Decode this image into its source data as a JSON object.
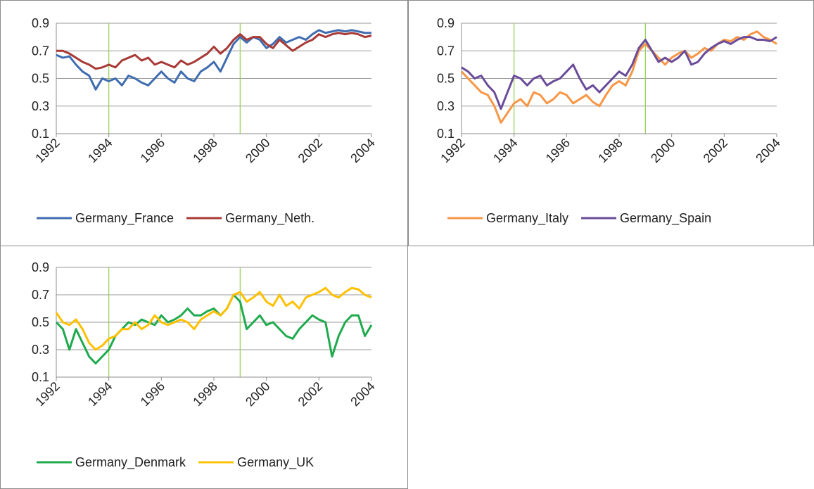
{
  "chart_data": [
    {
      "type": "line",
      "x": [
        1992,
        1992.25,
        1992.5,
        1992.75,
        1993,
        1993.25,
        1993.5,
        1993.75,
        1994,
        1994.25,
        1994.5,
        1994.75,
        1995,
        1995.25,
        1995.5,
        1995.75,
        1996,
        1996.25,
        1996.5,
        1996.75,
        1997,
        1997.25,
        1997.5,
        1997.75,
        1998,
        1998.25,
        1998.5,
        1998.75,
        1999,
        1999.25,
        1999.5,
        1999.75,
        2000,
        2000.25,
        2000.5,
        2000.75,
        2001,
        2001.25,
        2001.5,
        2001.75,
        2002,
        2002.25,
        2002.5,
        2002.75,
        2003,
        2003.25,
        2003.5,
        2003.75,
        2004
      ],
      "series": [
        {
          "name": "Germany_France",
          "color": "#3f6db0",
          "values": [
            0.67,
            0.65,
            0.66,
            0.6,
            0.55,
            0.52,
            0.42,
            0.5,
            0.48,
            0.5,
            0.45,
            0.52,
            0.5,
            0.47,
            0.45,
            0.5,
            0.55,
            0.5,
            0.47,
            0.55,
            0.5,
            0.48,
            0.55,
            0.58,
            0.62,
            0.55,
            0.65,
            0.75,
            0.8,
            0.76,
            0.8,
            0.78,
            0.72,
            0.75,
            0.8,
            0.76,
            0.78,
            0.8,
            0.78,
            0.82,
            0.85,
            0.83,
            0.84,
            0.85,
            0.84,
            0.85,
            0.84,
            0.83,
            0.83
          ]
        },
        {
          "name": "Germany_Neth.",
          "color": "#a83a36",
          "values": [
            0.7,
            0.7,
            0.68,
            0.65,
            0.62,
            0.6,
            0.57,
            0.58,
            0.6,
            0.58,
            0.63,
            0.65,
            0.67,
            0.63,
            0.65,
            0.6,
            0.62,
            0.6,
            0.58,
            0.63,
            0.6,
            0.62,
            0.65,
            0.68,
            0.73,
            0.68,
            0.72,
            0.78,
            0.82,
            0.78,
            0.8,
            0.8,
            0.75,
            0.72,
            0.78,
            0.74,
            0.7,
            0.73,
            0.76,
            0.78,
            0.82,
            0.8,
            0.82,
            0.83,
            0.82,
            0.83,
            0.82,
            0.8,
            0.81
          ]
        }
      ],
      "xlim": [
        1992,
        2004
      ],
      "xticks": [
        1992,
        1994,
        1996,
        1998,
        2000,
        2002,
        2004
      ],
      "ylim": [
        0.1,
        0.9
      ],
      "yticks": [
        0.1,
        0.3,
        0.5,
        0.7,
        0.9
      ],
      "grid": true,
      "vlines": [
        1994,
        1999
      ],
      "vline_color": "#92d050",
      "legend": "bottom"
    },
    {
      "type": "line",
      "x": [
        1992,
        1992.25,
        1992.5,
        1992.75,
        1993,
        1993.25,
        1993.5,
        1993.75,
        1994,
        1994.25,
        1994.5,
        1994.75,
        1995,
        1995.25,
        1995.5,
        1995.75,
        1996,
        1996.25,
        1996.5,
        1996.75,
        1997,
        1997.25,
        1997.5,
        1997.75,
        1998,
        1998.25,
        1998.5,
        1998.75,
        1999,
        1999.25,
        1999.5,
        1999.75,
        2000,
        2000.25,
        2000.5,
        2000.75,
        2001,
        2001.25,
        2001.5,
        2001.75,
        2002,
        2002.25,
        2002.5,
        2002.75,
        2003,
        2003.25,
        2003.5,
        2003.75,
        2004
      ],
      "series": [
        {
          "name": "Germany_Italy",
          "color": "#f79646",
          "values": [
            0.55,
            0.5,
            0.45,
            0.4,
            0.38,
            0.3,
            0.18,
            0.25,
            0.32,
            0.35,
            0.3,
            0.4,
            0.38,
            0.32,
            0.35,
            0.4,
            0.38,
            0.32,
            0.35,
            0.38,
            0.33,
            0.3,
            0.38,
            0.45,
            0.48,
            0.45,
            0.55,
            0.7,
            0.75,
            0.7,
            0.65,
            0.6,
            0.65,
            0.68,
            0.7,
            0.65,
            0.68,
            0.72,
            0.7,
            0.75,
            0.78,
            0.77,
            0.8,
            0.78,
            0.82,
            0.84,
            0.8,
            0.78,
            0.75
          ]
        },
        {
          "name": "Germany_Spain",
          "color": "#6a4c99",
          "values": [
            0.58,
            0.55,
            0.5,
            0.52,
            0.45,
            0.4,
            0.28,
            0.4,
            0.52,
            0.5,
            0.45,
            0.5,
            0.52,
            0.45,
            0.48,
            0.5,
            0.55,
            0.6,
            0.5,
            0.42,
            0.45,
            0.4,
            0.45,
            0.5,
            0.55,
            0.52,
            0.6,
            0.72,
            0.78,
            0.7,
            0.62,
            0.65,
            0.62,
            0.65,
            0.7,
            0.6,
            0.62,
            0.68,
            0.72,
            0.75,
            0.77,
            0.75,
            0.78,
            0.8,
            0.8,
            0.78,
            0.78,
            0.77,
            0.8
          ]
        }
      ],
      "xlim": [
        1992,
        2004
      ],
      "xticks": [
        1992,
        1994,
        1996,
        1998,
        2000,
        2002,
        2004
      ],
      "ylim": [
        0.1,
        0.9
      ],
      "yticks": [
        0.1,
        0.3,
        0.5,
        0.7,
        0.9
      ],
      "grid": true,
      "vlines": [
        1994,
        1999
      ],
      "vline_color": "#92d050",
      "legend": "bottom"
    },
    {
      "type": "line",
      "x": [
        1992,
        1992.25,
        1992.5,
        1992.75,
        1993,
        1993.25,
        1993.5,
        1993.75,
        1994,
        1994.25,
        1994.5,
        1994.75,
        1995,
        1995.25,
        1995.5,
        1995.75,
        1996,
        1996.25,
        1996.5,
        1996.75,
        1997,
        1997.25,
        1997.5,
        1997.75,
        1998,
        1998.25,
        1998.5,
        1998.75,
        1999,
        1999.25,
        1999.5,
        1999.75,
        2000,
        2000.25,
        2000.5,
        2000.75,
        2001,
        2001.25,
        2001.5,
        2001.75,
        2002,
        2002.25,
        2002.5,
        2002.75,
        2003,
        2003.25,
        2003.5,
        2003.75,
        2004
      ],
      "series": [
        {
          "name": "Germany_Denmark",
          "color": "#1faa4e",
          "values": [
            0.5,
            0.45,
            0.3,
            0.45,
            0.35,
            0.25,
            0.2,
            0.25,
            0.3,
            0.4,
            0.45,
            0.5,
            0.48,
            0.52,
            0.5,
            0.48,
            0.55,
            0.5,
            0.52,
            0.55,
            0.6,
            0.55,
            0.55,
            0.58,
            0.6,
            0.55,
            0.6,
            0.7,
            0.65,
            0.45,
            0.5,
            0.55,
            0.48,
            0.5,
            0.45,
            0.4,
            0.38,
            0.45,
            0.5,
            0.55,
            0.52,
            0.5,
            0.25,
            0.4,
            0.5,
            0.55,
            0.55,
            0.4,
            0.48
          ]
        },
        {
          "name": "Germany_UK",
          "color": "#ffc000",
          "values": [
            0.57,
            0.5,
            0.48,
            0.52,
            0.45,
            0.35,
            0.3,
            0.33,
            0.38,
            0.4,
            0.45,
            0.45,
            0.5,
            0.45,
            0.48,
            0.55,
            0.5,
            0.48,
            0.5,
            0.52,
            0.5,
            0.45,
            0.52,
            0.55,
            0.58,
            0.55,
            0.6,
            0.7,
            0.72,
            0.65,
            0.68,
            0.72,
            0.65,
            0.62,
            0.7,
            0.62,
            0.65,
            0.6,
            0.68,
            0.7,
            0.72,
            0.75,
            0.7,
            0.68,
            0.72,
            0.75,
            0.74,
            0.7,
            0.68
          ]
        }
      ],
      "xlim": [
        1992,
        2004
      ],
      "xticks": [
        1992,
        1994,
        1996,
        1998,
        2000,
        2002,
        2004
      ],
      "ylim": [
        0.1,
        0.9
      ],
      "yticks": [
        0.1,
        0.3,
        0.5,
        0.7,
        0.9
      ],
      "grid": true,
      "vlines": [
        1994,
        1999
      ],
      "vline_color": "#92d050",
      "legend": "bottom"
    }
  ]
}
